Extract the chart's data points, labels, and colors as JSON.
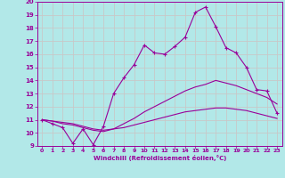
{
  "xlabel": "Windchill (Refroidissement éolien,°C)",
  "xlim": [
    -0.5,
    23.5
  ],
  "ylim": [
    9,
    20
  ],
  "xticks": [
    0,
    1,
    2,
    3,
    4,
    5,
    6,
    7,
    8,
    9,
    10,
    11,
    12,
    13,
    14,
    15,
    16,
    17,
    18,
    19,
    20,
    21,
    22,
    23
  ],
  "yticks": [
    9,
    10,
    11,
    12,
    13,
    14,
    15,
    16,
    17,
    18,
    19,
    20
  ],
  "bg_color": "#b2e8e8",
  "grid_color": "#c8c8c8",
  "line_color": "#990099",
  "line1_x": [
    0,
    1,
    2,
    3,
    4,
    5,
    6,
    7,
    8,
    9,
    10,
    11,
    12,
    13,
    14,
    15,
    16,
    17,
    18,
    19,
    20,
    21,
    22,
    23
  ],
  "line1_y": [
    11.0,
    10.7,
    10.4,
    9.2,
    10.3,
    9.1,
    10.5,
    13.0,
    14.2,
    15.2,
    16.7,
    16.1,
    16.0,
    16.6,
    17.3,
    19.2,
    19.6,
    18.1,
    16.5,
    16.1,
    15.0,
    13.3,
    13.2,
    11.5
  ],
  "line2_x": [
    0,
    1,
    2,
    3,
    4,
    5,
    6,
    7,
    8,
    9,
    10,
    11,
    12,
    13,
    14,
    15,
    16,
    17,
    18,
    19,
    20,
    21,
    22,
    23
  ],
  "line2_y": [
    11.0,
    10.9,
    10.7,
    10.6,
    10.4,
    10.2,
    10.1,
    10.3,
    10.7,
    11.1,
    11.6,
    12.0,
    12.4,
    12.8,
    13.2,
    13.5,
    13.7,
    14.0,
    13.8,
    13.6,
    13.3,
    13.0,
    12.7,
    12.2
  ],
  "line3_x": [
    0,
    1,
    2,
    3,
    4,
    5,
    6,
    7,
    8,
    9,
    10,
    11,
    12,
    13,
    14,
    15,
    16,
    17,
    18,
    19,
    20,
    21,
    22,
    23
  ],
  "line3_y": [
    11.0,
    10.9,
    10.8,
    10.7,
    10.5,
    10.3,
    10.2,
    10.3,
    10.4,
    10.6,
    10.8,
    11.0,
    11.2,
    11.4,
    11.6,
    11.7,
    11.8,
    11.9,
    11.9,
    11.8,
    11.7,
    11.5,
    11.3,
    11.1
  ]
}
